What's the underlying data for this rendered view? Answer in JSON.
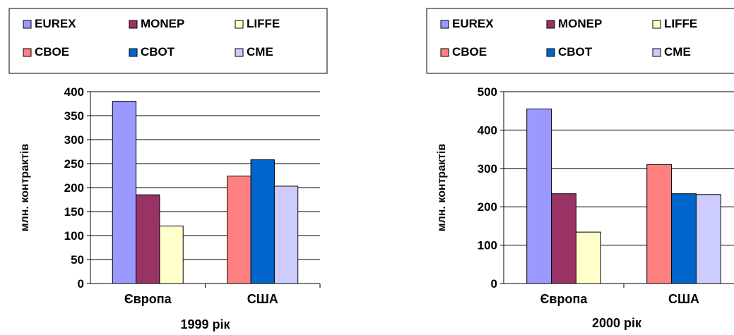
{
  "chart_data": [
    {
      "type": "bar",
      "title": "",
      "xlabel": "1999 рік",
      "ylabel": "млн. контрактів",
      "categories": [
        "Європа",
        "США"
      ],
      "ylim": [
        0,
        400
      ],
      "yticks": [
        "0",
        "50",
        "100",
        "150",
        "200",
        "250",
        "300",
        "350",
        "400"
      ],
      "grid": true,
      "legend_position": "top",
      "series": [
        {
          "name": "EUREX",
          "color": "#9999ff",
          "values": [
            380,
            null
          ]
        },
        {
          "name": "MONEP",
          "color": "#993366",
          "values": [
            185,
            null
          ]
        },
        {
          "name": "LIFFE",
          "color": "#ffffcc",
          "values": [
            120,
            null
          ]
        },
        {
          "name": "CBOE",
          "color": "#ff8080",
          "values": [
            null,
            224
          ]
        },
        {
          "name": "CBOT",
          "color": "#0066cc",
          "values": [
            null,
            258
          ]
        },
        {
          "name": "CME",
          "color": "#ccccff",
          "values": [
            null,
            203
          ]
        }
      ]
    },
    {
      "type": "bar",
      "title": "",
      "xlabel": "2000 рік",
      "ylabel": "млн. контрактів",
      "categories": [
        "Європа",
        "США"
      ],
      "ylim": [
        0,
        500
      ],
      "yticks": [
        "0",
        "100",
        "200",
        "300",
        "400",
        "500"
      ],
      "grid": true,
      "legend_position": "top",
      "series": [
        {
          "name": "EUREX",
          "color": "#9999ff",
          "values": [
            455,
            null
          ]
        },
        {
          "name": "MONEP",
          "color": "#993366",
          "values": [
            234,
            null
          ]
        },
        {
          "name": "LIFFE",
          "color": "#ffffcc",
          "values": [
            134,
            null
          ]
        },
        {
          "name": "CBOE",
          "color": "#ff8080",
          "values": [
            null,
            310
          ]
        },
        {
          "name": "CBOT",
          "color": "#0066cc",
          "values": [
            null,
            234
          ]
        },
        {
          "name": "CME",
          "color": "#ccccff",
          "values": [
            null,
            232
          ]
        }
      ]
    }
  ]
}
